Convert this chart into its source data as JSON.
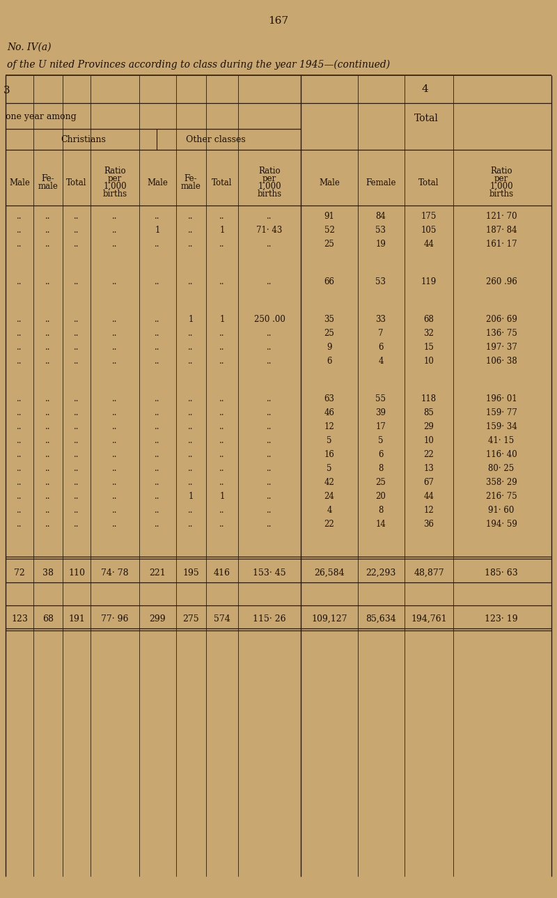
{
  "bg_color": "#c8a870",
  "page_number": "167",
  "title_line1": "No. IV(a)",
  "title_line2": "of the U nited Provinces according to class during the year 1945—(continued)",
  "col3_header": "3",
  "col4_header": "4",
  "sub_header_left": "one year among",
  "sub_header_total": "Total",
  "christians_label": "Christians",
  "other_classes_label": "Other classes",
  "rows": [
    [
      "..",
      "..",
      "..",
      "..",
      "..",
      "..",
      "..",
      "..",
      "91",
      "84",
      "175",
      "121· 70"
    ],
    [
      "..",
      "..",
      "..",
      "..",
      "1",
      "..",
      "1",
      "71· 43",
      "52",
      "53",
      "105",
      "187· 84"
    ],
    [
      "..",
      "..",
      "..",
      "..",
      "..",
      "..",
      "..",
      "..",
      "25",
      "19",
      "44",
      "161· 17"
    ],
    [
      "",
      "",
      "",
      "",
      "",
      "",
      "",
      "",
      "",
      "",
      "",
      ""
    ],
    [
      "..",
      "..",
      "..",
      "..",
      "..",
      "..",
      "..",
      "..",
      "66",
      "53",
      "119",
      "260 .96"
    ],
    [
      "",
      "",
      "",
      "",
      "",
      "",
      "",
      "",
      "",
      "",
      "",
      ""
    ],
    [
      "..",
      "..",
      "..",
      "..",
      "..",
      "1",
      "1",
      "250 .00",
      "35",
      "33",
      "68",
      "206· 69"
    ],
    [
      "..",
      "..",
      "..",
      "..",
      "..",
      "..",
      "..",
      "..",
      "25",
      "7",
      "32",
      "136· 75"
    ],
    [
      "..",
      "..",
      "..",
      "..",
      "..",
      "..",
      "..",
      "..",
      "9",
      "6",
      "15",
      "197· 37"
    ],
    [
      "..",
      "..",
      "..",
      "..",
      "..",
      "..",
      "..",
      "..",
      "6",
      "4",
      "10",
      "106· 38"
    ],
    [
      "",
      "",
      "",
      "",
      "",
      "",
      "",
      "",
      "",
      "",
      "",
      ""
    ],
    [
      "..",
      "..",
      "..",
      "..",
      "..",
      "..",
      "..",
      "..",
      "63",
      "55",
      "118",
      "196· 01"
    ],
    [
      "..",
      "..",
      "..",
      "..",
      "..",
      "..",
      "..",
      "..",
      "46",
      "39",
      "85",
      "159· 77"
    ],
    [
      "..",
      "..",
      "..",
      "..",
      "..",
      "..",
      "..",
      "..",
      "12",
      "17",
      "29",
      "159· 34"
    ],
    [
      "..",
      "..",
      "..",
      "..",
      "..",
      "..",
      "..",
      "..",
      "5",
      "5",
      "10",
      "41· 15"
    ],
    [
      "..",
      "..",
      "..",
      "..",
      "..",
      "..",
      "..",
      "..",
      "16",
      "6",
      "22",
      "116· 40"
    ],
    [
      "..",
      "..",
      "..",
      "..",
      "..",
      "..",
      "..",
      "..",
      "5",
      "8",
      "13",
      "80· 25"
    ],
    [
      "..",
      "..",
      "..",
      "..",
      "..",
      "..",
      "..",
      "..",
      "42",
      "25",
      "67",
      "358· 29"
    ],
    [
      "..",
      "..",
      "..",
      "..",
      "..",
      "1",
      "1",
      "..",
      "24",
      "20",
      "44",
      "216· 75"
    ],
    [
      "..",
      "..",
      "..",
      "..",
      "..",
      "..",
      "..",
      "..",
      "4",
      "8",
      "12",
      "91· 60"
    ],
    [
      "..",
      "..",
      "..",
      "..",
      "..",
      "..",
      "..",
      "..",
      "22",
      "14",
      "36",
      "194· 59"
    ],
    [
      "",
      "",
      "",
      "",
      "",
      "",
      "",
      "",
      "",
      "",
      "",
      ""
    ]
  ],
  "footer_row1": [
    "72",
    "38",
    "110",
    "74· 78",
    "221",
    "195",
    "416",
    "153· 45",
    "26,584",
    "22,293",
    "48,877",
    "185· 63"
  ],
  "footer_row2": [
    "123",
    "68",
    "191",
    "77· 96",
    "299",
    "275",
    "574",
    "115· 26",
    "109,127",
    "85,634",
    "194,761",
    "123· 19"
  ],
  "text_color": "#1a0f05",
  "line_color": "#2a1a05"
}
